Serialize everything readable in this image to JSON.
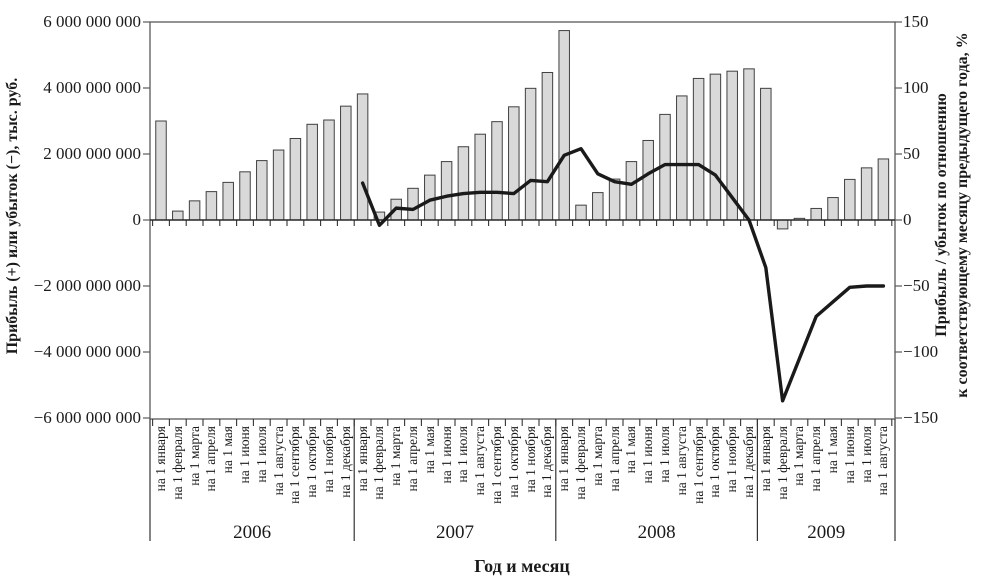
{
  "chart_data": {
    "type": "combo-bar-line",
    "title": "",
    "xlabel": "Год и месяц",
    "left_axis": {
      "title": "Прибыль (+) или убыток (−), тыс. руб.",
      "min": -6000000000,
      "max": 6000000000,
      "step": 2000000000,
      "tick_labels": [
        "6 000 000 000",
        "4 000 000 000",
        "2 000 000 000",
        "0",
        "−2 000 000 000",
        "−4 000 000 000",
        "−6 000 000 000"
      ]
    },
    "right_axis": {
      "title_line1": "Прибыль / убыток по отношению",
      "title_line2": "к соответствующему месяцу предыдущего года, %",
      "min": -150,
      "max": 150,
      "step": 50,
      "tick_labels": [
        "150",
        "100",
        "50",
        "0",
        "−50",
        "−100",
        "−150"
      ]
    },
    "categories": {
      "years": [
        "2006",
        "2007",
        "2008",
        "2009"
      ],
      "months_per_year": [
        12,
        12,
        12,
        8
      ],
      "month_label_template": [
        "на 1 января",
        "на 1 февраля",
        "на 1 марта",
        "на 1 апреля",
        "на 1 мая",
        "на 1 июня",
        "на 1 июля",
        "на 1 августа",
        "на 1 сентября",
        "на 1 октября",
        "на 1 ноября",
        "на 1 декабря"
      ]
    },
    "series": [
      {
        "name": "Прибыль (+) или убыток (−), тыс. руб.",
        "type": "bar",
        "axis": "left",
        "values": [
          3000000000,
          270000000,
          580000000,
          860000000,
          1140000000,
          1460000000,
          1800000000,
          2120000000,
          2470000000,
          2900000000,
          3030000000,
          3450000000,
          3820000000,
          240000000,
          630000000,
          960000000,
          1360000000,
          1770000000,
          2220000000,
          2600000000,
          2980000000,
          3430000000,
          3990000000,
          4470000000,
          5740000000,
          450000000,
          830000000,
          1240000000,
          1770000000,
          2410000000,
          3200000000,
          3760000000,
          4290000000,
          4420000000,
          4510000000,
          4580000000,
          3990000000,
          -270000000,
          50000000,
          350000000,
          680000000,
          1230000000,
          1580000000,
          1850000000
        ]
      },
      {
        "name": "Прибыль / убыток по отношению к соответствующему месяцу предыдущего года, %",
        "type": "line",
        "axis": "right",
        "values": [
          null,
          null,
          null,
          null,
          null,
          null,
          null,
          null,
          null,
          null,
          null,
          null,
          28,
          -4,
          9,
          8,
          15,
          18,
          20,
          21,
          21,
          20,
          30,
          29,
          49,
          54,
          35,
          29,
          27,
          35,
          42,
          42,
          42,
          34,
          17,
          0,
          -36,
          -137,
          -105,
          -73,
          -62,
          -51,
          -50,
          -50
        ]
      }
    ],
    "legend": "none",
    "grid": "zero-line-only",
    "colors": {
      "bar_fill": "#d9d9d9",
      "bar_border": "#404040",
      "line": "#1a1a1a",
      "axis": "#595959",
      "zero_line": "#262626",
      "background": "#ffffff"
    }
  }
}
